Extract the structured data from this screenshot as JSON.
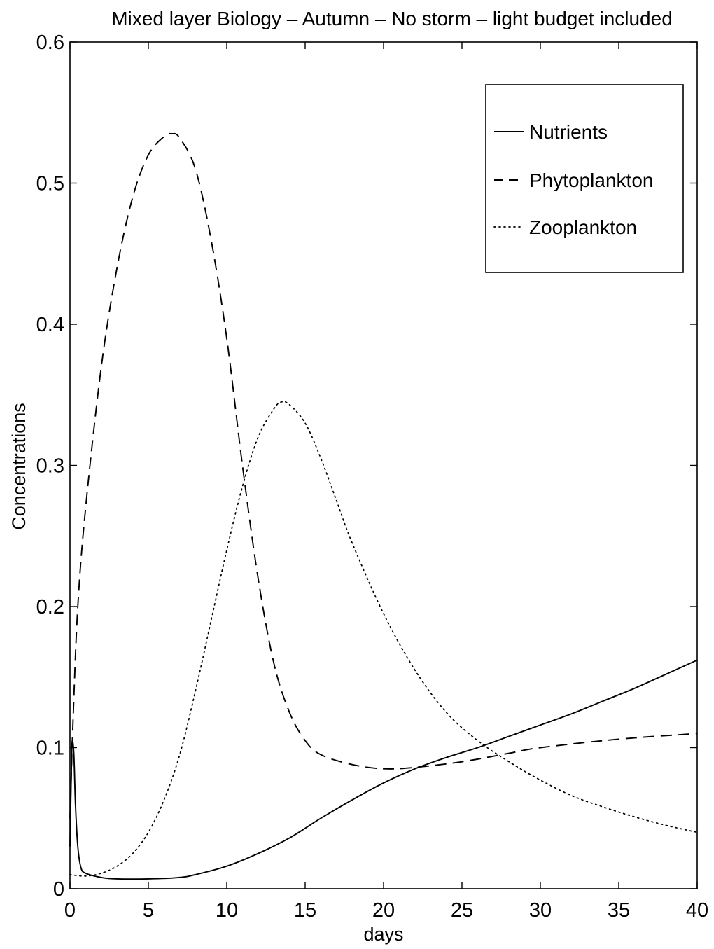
{
  "chart_data": {
    "type": "line",
    "title": "Mixed layer Biology – Autumn – No storm – light budget included",
    "xlabel": "days",
    "ylabel": "Concentrations",
    "xlim": [
      0,
      40
    ],
    "ylim": [
      0,
      0.6
    ],
    "x_ticks": [
      "0",
      "5",
      "10",
      "15",
      "20",
      "25",
      "30",
      "35",
      "40"
    ],
    "y_ticks": [
      "0",
      "0.1",
      "0.2",
      "0.3",
      "0.4",
      "0.5",
      "0.6"
    ],
    "grid": false,
    "legend": {
      "placement": "top-right"
    },
    "series": [
      {
        "name": "Nutrients",
        "style": "solid",
        "color": "#000000",
        "points": [
          [
            0,
            0.03
          ],
          [
            0.1,
            0.09
          ],
          [
            0.15,
            0.105
          ],
          [
            0.25,
            0.095
          ],
          [
            0.35,
            0.06
          ],
          [
            0.5,
            0.03
          ],
          [
            0.7,
            0.015
          ],
          [
            1,
            0.011
          ],
          [
            2,
            0.008
          ],
          [
            3,
            0.007
          ],
          [
            5,
            0.007
          ],
          [
            7,
            0.008
          ],
          [
            8,
            0.01
          ],
          [
            10,
            0.016
          ],
          [
            12,
            0.025
          ],
          [
            14,
            0.036
          ],
          [
            16,
            0.05
          ],
          [
            18,
            0.063
          ],
          [
            20,
            0.075
          ],
          [
            22,
            0.085
          ],
          [
            24,
            0.093
          ],
          [
            26,
            0.1
          ],
          [
            28,
            0.108
          ],
          [
            30,
            0.116
          ],
          [
            32,
            0.124
          ],
          [
            34,
            0.133
          ],
          [
            36,
            0.142
          ],
          [
            38,
            0.152
          ],
          [
            40,
            0.162
          ]
        ]
      },
      {
        "name": "Phytoplankton",
        "style": "dashed",
        "color": "#000000",
        "points": [
          [
            0,
            0.05
          ],
          [
            0.2,
            0.12
          ],
          [
            0.5,
            0.2
          ],
          [
            1,
            0.27
          ],
          [
            2,
            0.37
          ],
          [
            3,
            0.44
          ],
          [
            4,
            0.49
          ],
          [
            5,
            0.52
          ],
          [
            6,
            0.533
          ],
          [
            6.5,
            0.535
          ],
          [
            7,
            0.532
          ],
          [
            8,
            0.51
          ],
          [
            9,
            0.46
          ],
          [
            10,
            0.39
          ],
          [
            11,
            0.3
          ],
          [
            12,
            0.22
          ],
          [
            13,
            0.16
          ],
          [
            14,
            0.125
          ],
          [
            15,
            0.105
          ],
          [
            16,
            0.095
          ],
          [
            18,
            0.088
          ],
          [
            20,
            0.085
          ],
          [
            22,
            0.086
          ],
          [
            25,
            0.09
          ],
          [
            28,
            0.096
          ],
          [
            30,
            0.1
          ],
          [
            35,
            0.106
          ],
          [
            40,
            0.11
          ]
        ]
      },
      {
        "name": "Zooplankton",
        "style": "dotted",
        "color": "#000000",
        "points": [
          [
            0,
            0.01
          ],
          [
            1,
            0.009
          ],
          [
            2,
            0.011
          ],
          [
            3,
            0.016
          ],
          [
            4,
            0.025
          ],
          [
            5,
            0.04
          ],
          [
            6,
            0.063
          ],
          [
            7,
            0.095
          ],
          [
            8,
            0.14
          ],
          [
            9,
            0.19
          ],
          [
            10,
            0.24
          ],
          [
            11,
            0.285
          ],
          [
            12,
            0.32
          ],
          [
            13,
            0.34
          ],
          [
            13.5,
            0.345
          ],
          [
            14,
            0.343
          ],
          [
            15,
            0.33
          ],
          [
            16,
            0.305
          ],
          [
            17,
            0.275
          ],
          [
            18,
            0.245
          ],
          [
            20,
            0.195
          ],
          [
            22,
            0.155
          ],
          [
            24,
            0.125
          ],
          [
            26,
            0.105
          ],
          [
            28,
            0.09
          ],
          [
            30,
            0.077
          ],
          [
            32,
            0.066
          ],
          [
            34,
            0.058
          ],
          [
            36,
            0.051
          ],
          [
            38,
            0.045
          ],
          [
            40,
            0.04
          ]
        ]
      }
    ]
  }
}
